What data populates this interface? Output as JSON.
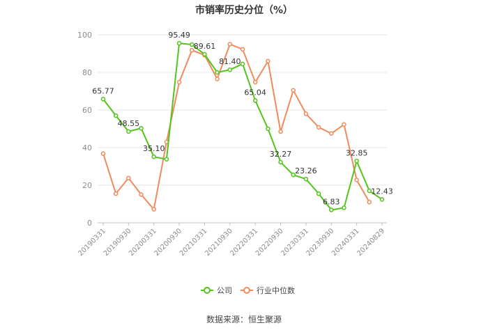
{
  "chart_data": {
    "type": "line",
    "title": "市销率历史分位（%）",
    "xlabel": "",
    "ylabel": "",
    "ylim": [
      0,
      100
    ],
    "yticks": [
      "0",
      "20",
      "40",
      "60",
      "80",
      "100"
    ],
    "xticks": [
      "20190331",
      "20190930",
      "20200331",
      "20200930",
      "20210331",
      "20210930",
      "20220331",
      "20220930",
      "20230331",
      "20230930",
      "20240331",
      "20240829"
    ],
    "grid": "horizontal",
    "legend": "bottom-center",
    "series": [
      {
        "name": "公司",
        "color": "#52c41a",
        "values": [
          65.77,
          57.0,
          48.55,
          50.3,
          35.1,
          33.8,
          95.49,
          94.8,
          89.61,
          80.0,
          81.4,
          84.5,
          65.04,
          50.0,
          32.27,
          25.5,
          23.26,
          15.5,
          6.83,
          8.0,
          32.85,
          17.0,
          12.43
        ]
      },
      {
        "name": "行业中位数",
        "color": "#f08a5d",
        "values": [
          36.8,
          15.5,
          23.8,
          15.0,
          7.2,
          43.0,
          74.8,
          91.8,
          89.2,
          76.5,
          95.0,
          92.3,
          74.8,
          86.0,
          48.5,
          70.5,
          58.0,
          50.8,
          47.5,
          52.3,
          22.8,
          11.0,
          null
        ]
      }
    ],
    "data_labels": [
      {
        "series": 0,
        "index": 0,
        "text": "65.77"
      },
      {
        "series": 0,
        "index": 2,
        "text": "48.55"
      },
      {
        "series": 0,
        "index": 4,
        "text": "35.10"
      },
      {
        "series": 0,
        "index": 6,
        "text": "95.49"
      },
      {
        "series": 0,
        "index": 8,
        "text": "89.61"
      },
      {
        "series": 0,
        "index": 10,
        "text": "81.40"
      },
      {
        "series": 0,
        "index": 12,
        "text": "65.04"
      },
      {
        "series": 0,
        "index": 14,
        "text": "32.27"
      },
      {
        "series": 0,
        "index": 16,
        "text": "23.26"
      },
      {
        "series": 0,
        "index": 18,
        "text": "6.83"
      },
      {
        "series": 0,
        "index": 20,
        "text": "32.85"
      },
      {
        "series": 0,
        "index": 22,
        "text": "12.43"
      }
    ]
  },
  "source": "数据来源：恒生聚源"
}
